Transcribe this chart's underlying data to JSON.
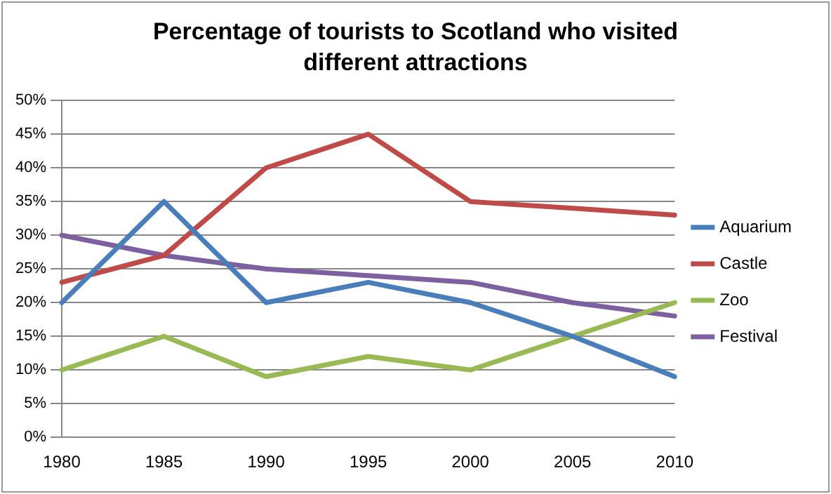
{
  "chart_data": {
    "type": "line",
    "title": "Percentage of tourists to Scotland who visited different attractions",
    "categories": [
      "1980",
      "1985",
      "1990",
      "1995",
      "2000",
      "2005",
      "2010"
    ],
    "series": [
      {
        "name": "Aquarium",
        "color": "#4a7ebb",
        "values": [
          20,
          35,
          20,
          23,
          20,
          15,
          9
        ]
      },
      {
        "name": "Castle",
        "color": "#be4b48",
        "values": [
          23,
          27,
          40,
          45,
          35,
          34,
          33
        ]
      },
      {
        "name": "Zoo",
        "color": "#98b954",
        "values": [
          10,
          15,
          9,
          12,
          10,
          15,
          20
        ]
      },
      {
        "name": "Festival",
        "color": "#7d60a0",
        "values": [
          30,
          27,
          25,
          24,
          23,
          20,
          18
        ]
      }
    ],
    "ylim": [
      0,
      50
    ],
    "yticks": [
      {
        "value": 0,
        "label": "0%"
      },
      {
        "value": 5,
        "label": "5%"
      },
      {
        "value": 10,
        "label": "10%"
      },
      {
        "value": 15,
        "label": "15%"
      },
      {
        "value": 20,
        "label": "20%"
      },
      {
        "value": 25,
        "label": "25%"
      },
      {
        "value": 30,
        "label": "30%"
      },
      {
        "value": 35,
        "label": "35%"
      },
      {
        "value": 40,
        "label": "40%"
      },
      {
        "value": 45,
        "label": "45%"
      },
      {
        "value": 50,
        "label": "50%"
      }
    ],
    "grid": "y",
    "legend": "right",
    "marker": "none",
    "line_style": "solid"
  }
}
